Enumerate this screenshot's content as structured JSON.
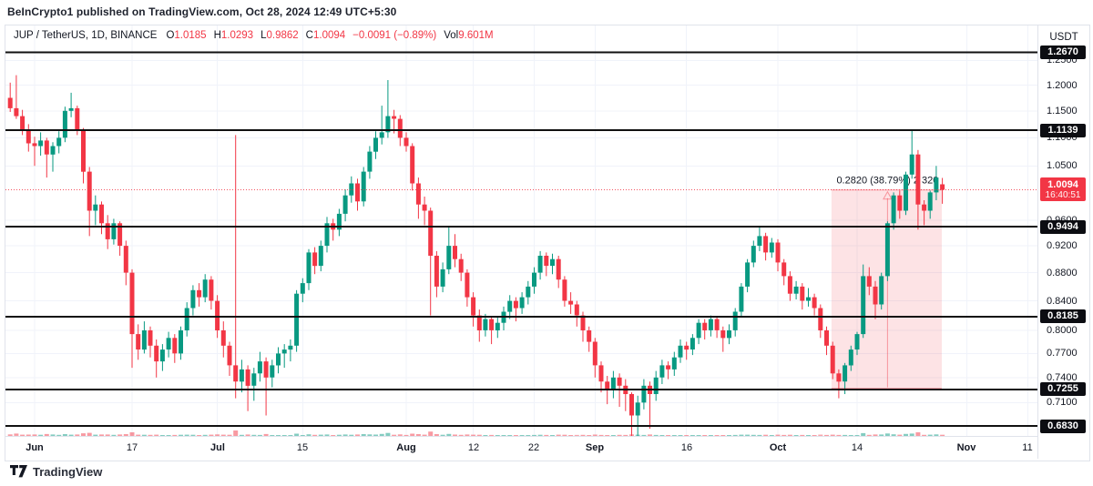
{
  "attribution": "BeInCrypto1 published on TradingView.com, Oct 28, 2024 12:49 UTC+5:30",
  "legend": {
    "symbol": "JUP / TetherUS, 1D, BINANCE",
    "o_label": "O",
    "o": "1.0185",
    "h_label": "H",
    "h": "1.0293",
    "l_label": "L",
    "l": "0.9862",
    "c_label": "C",
    "c": "1.0094",
    "change": "−0.0091 (−0.89%)",
    "vol_label": "Vol",
    "vol": "9.601M"
  },
  "axis": {
    "currency": "USDT"
  },
  "footer": {
    "brand": "TradingView",
    "logo_icon": "tradingview-logo"
  },
  "chart_data": {
    "type": "candlestick",
    "title": "JUP / TetherUS, 1D, BINANCE",
    "timeframe": "1D",
    "scale": "logarithmic",
    "start_date": "2024-05-28",
    "end_date": "2024-10-28",
    "current": {
      "price": 1.0094,
      "label": "1.0094",
      "countdown": "16:40:51"
    },
    "y_axis": {
      "labels": [
        "1.2500",
        "1.2000",
        "1.1500",
        "1.1000",
        "1.0500",
        "0.9600",
        "0.9200",
        "0.8800",
        "0.8400",
        "0.8000",
        "0.7700",
        "0.7400",
        "0.7100"
      ],
      "range_top": 1.324,
      "range_bottom": 0.672
    },
    "levels": [
      {
        "label": "1.2670"
      },
      {
        "label": "1.1139"
      },
      {
        "label": "0.9494"
      },
      {
        "label": "0.8185"
      },
      {
        "label": "0.7255"
      },
      {
        "label": "0.6830"
      }
    ],
    "x_axis": {
      "ticks": [
        {
          "label": "Jun",
          "day": 4,
          "major": true
        },
        {
          "label": "17",
          "day": 20,
          "major": false
        },
        {
          "label": "Jul",
          "day": 34,
          "major": true
        },
        {
          "label": "15",
          "day": 48,
          "major": false
        },
        {
          "label": "Aug",
          "day": 65,
          "major": true
        },
        {
          "label": "12",
          "day": 76,
          "major": false
        },
        {
          "label": "22",
          "day": 86,
          "major": false
        },
        {
          "label": "Sep",
          "day": 96,
          "major": true
        },
        {
          "label": "16",
          "day": 111,
          "major": false
        },
        {
          "label": "Oct",
          "day": 126,
          "major": true
        },
        {
          "label": "14",
          "day": 139,
          "major": false
        },
        {
          "label": "Nov",
          "day": 157,
          "major": true
        },
        {
          "label": "11",
          "day": 167,
          "major": false
        }
      ]
    },
    "measure": {
      "from_day": 134.8,
      "to_day": 152.9,
      "price_from": 0.727,
      "price_to": 1.009,
      "arrow_day": 144,
      "label": "0.2820 (38.79%) 2 320"
    },
    "candles": [
      [
        1.175,
        1.205,
        1.148,
        1.155
      ],
      [
        1.155,
        1.22,
        1.135,
        1.14
      ],
      [
        1.14,
        1.152,
        1.105,
        1.115
      ],
      [
        1.115,
        1.125,
        1.075,
        1.09
      ],
      [
        1.09,
        1.102,
        1.05,
        1.085
      ],
      [
        1.085,
        1.11,
        1.068,
        1.095
      ],
      [
        1.095,
        1.1,
        1.03,
        1.07
      ],
      [
        1.07,
        1.092,
        1.04,
        1.085
      ],
      [
        1.085,
        1.112,
        1.072,
        1.1
      ],
      [
        1.1,
        1.158,
        1.092,
        1.15
      ],
      [
        1.15,
        1.185,
        1.138,
        1.155
      ],
      [
        1.155,
        1.16,
        1.105,
        1.115
      ],
      [
        1.115,
        1.118,
        1.02,
        1.04
      ],
      [
        1.04,
        1.048,
        0.935,
        0.975
      ],
      [
        0.975,
        1.0,
        0.952,
        0.985
      ],
      [
        0.985,
        0.99,
        0.938,
        0.955
      ],
      [
        0.955,
        0.968,
        0.915,
        0.93
      ],
      [
        0.93,
        0.962,
        0.922,
        0.955
      ],
      [
        0.955,
        0.958,
        0.905,
        0.92
      ],
      [
        0.92,
        0.928,
        0.862,
        0.88
      ],
      [
        0.88,
        0.885,
        0.752,
        0.795
      ],
      [
        0.795,
        0.808,
        0.762,
        0.775
      ],
      [
        0.775,
        0.812,
        0.77,
        0.8
      ],
      [
        0.8,
        0.805,
        0.765,
        0.78
      ],
      [
        0.78,
        0.788,
        0.74,
        0.76
      ],
      [
        0.76,
        0.782,
        0.748,
        0.775
      ],
      [
        0.775,
        0.798,
        0.765,
        0.79
      ],
      [
        0.79,
        0.795,
        0.758,
        0.77
      ],
      [
        0.77,
        0.805,
        0.762,
        0.8
      ],
      [
        0.8,
        0.838,
        0.792,
        0.83
      ],
      [
        0.83,
        0.862,
        0.82,
        0.855
      ],
      [
        0.855,
        0.865,
        0.832,
        0.845
      ],
      [
        0.845,
        0.878,
        0.838,
        0.87
      ],
      [
        0.87,
        0.875,
        0.828,
        0.84
      ],
      [
        0.84,
        0.848,
        0.79,
        0.8
      ],
      [
        0.8,
        0.812,
        0.765,
        0.78
      ],
      [
        0.78,
        0.785,
        0.742,
        0.755
      ],
      [
        0.755,
        1.105,
        0.715,
        0.735
      ],
      [
        0.735,
        0.762,
        0.722,
        0.75
      ],
      [
        0.75,
        0.755,
        0.7,
        0.73
      ],
      [
        0.73,
        0.752,
        0.712,
        0.745
      ],
      [
        0.745,
        0.772,
        0.735,
        0.76
      ],
      [
        0.76,
        0.765,
        0.695,
        0.74
      ],
      [
        0.74,
        0.762,
        0.728,
        0.755
      ],
      [
        0.755,
        0.778,
        0.745,
        0.77
      ],
      [
        0.77,
        0.782,
        0.752,
        0.775
      ],
      [
        0.775,
        0.788,
        0.76,
        0.78
      ],
      [
        0.78,
        0.855,
        0.772,
        0.85
      ],
      [
        0.85,
        0.872,
        0.838,
        0.865
      ],
      [
        0.865,
        0.915,
        0.855,
        0.91
      ],
      [
        0.91,
        0.918,
        0.878,
        0.89
      ],
      [
        0.89,
        0.928,
        0.882,
        0.92
      ],
      [
        0.92,
        0.965,
        0.91,
        0.955
      ],
      [
        0.955,
        0.962,
        0.928,
        0.945
      ],
      [
        0.945,
        0.978,
        0.935,
        0.97
      ],
      [
        0.97,
        1.01,
        0.958,
        1.0
      ],
      [
        1.0,
        1.032,
        0.988,
        1.02
      ],
      [
        1.02,
        1.028,
        0.975,
        0.99
      ],
      [
        0.99,
        1.048,
        0.982,
        1.04
      ],
      [
        1.04,
        1.085,
        1.028,
        1.075
      ],
      [
        1.075,
        1.112,
        1.062,
        1.1
      ],
      [
        1.1,
        1.16,
        1.088,
        1.11
      ],
      [
        1.11,
        1.21,
        1.1,
        1.14
      ],
      [
        1.14,
        1.152,
        1.108,
        1.135
      ],
      [
        1.135,
        1.142,
        1.085,
        1.1
      ],
      [
        1.1,
        1.11,
        1.075,
        1.085
      ],
      [
        1.085,
        1.09,
        1.008,
        1.02
      ],
      [
        1.02,
        1.03,
        0.962,
        0.985
      ],
      [
        0.985,
        0.998,
        0.952,
        0.975
      ],
      [
        0.975,
        0.98,
        0.82,
        0.905
      ],
      [
        0.905,
        0.912,
        0.845,
        0.86
      ],
      [
        0.86,
        0.895,
        0.852,
        0.885
      ],
      [
        0.885,
        0.95,
        0.878,
        0.92
      ],
      [
        0.92,
        0.938,
        0.888,
        0.9
      ],
      [
        0.9,
        0.908,
        0.868,
        0.88
      ],
      [
        0.88,
        0.885,
        0.832,
        0.845
      ],
      [
        0.845,
        0.852,
        0.805,
        0.82
      ],
      [
        0.82,
        0.828,
        0.785,
        0.8
      ],
      [
        0.8,
        0.822,
        0.792,
        0.815
      ],
      [
        0.815,
        0.818,
        0.782,
        0.8
      ],
      [
        0.8,
        0.818,
        0.79,
        0.81
      ],
      [
        0.81,
        0.832,
        0.8,
        0.825
      ],
      [
        0.825,
        0.848,
        0.815,
        0.84
      ],
      [
        0.84,
        0.845,
        0.812,
        0.83
      ],
      [
        0.83,
        0.852,
        0.822,
        0.845
      ],
      [
        0.845,
        0.868,
        0.835,
        0.86
      ],
      [
        0.86,
        0.888,
        0.85,
        0.88
      ],
      [
        0.88,
        0.912,
        0.87,
        0.905
      ],
      [
        0.905,
        0.91,
        0.875,
        0.89
      ],
      [
        0.89,
        0.908,
        0.878,
        0.9
      ],
      [
        0.9,
        0.905,
        0.858,
        0.87
      ],
      [
        0.87,
        0.875,
        0.832,
        0.84
      ],
      [
        0.84,
        0.852,
        0.822,
        0.835
      ],
      [
        0.835,
        0.84,
        0.805,
        0.82
      ],
      [
        0.82,
        0.825,
        0.785,
        0.8
      ],
      [
        0.8,
        0.805,
        0.772,
        0.785
      ],
      [
        0.785,
        0.79,
        0.74,
        0.755
      ],
      [
        0.755,
        0.76,
        0.722,
        0.735
      ],
      [
        0.735,
        0.742,
        0.708,
        0.725
      ],
      [
        0.725,
        0.748,
        0.715,
        0.74
      ],
      [
        0.74,
        0.745,
        0.705,
        0.73
      ],
      [
        0.73,
        0.738,
        0.7,
        0.72
      ],
      [
        0.72,
        0.722,
        0.665,
        0.695
      ],
      [
        0.695,
        0.718,
        0.67,
        0.71
      ],
      [
        0.71,
        0.738,
        0.702,
        0.73
      ],
      [
        0.73,
        0.735,
        0.68,
        0.72
      ],
      [
        0.72,
        0.748,
        0.712,
        0.74
      ],
      [
        0.74,
        0.762,
        0.732,
        0.755
      ],
      [
        0.755,
        0.76,
        0.738,
        0.75
      ],
      [
        0.75,
        0.772,
        0.742,
        0.765
      ],
      [
        0.765,
        0.788,
        0.758,
        0.78
      ],
      [
        0.78,
        0.785,
        0.762,
        0.775
      ],
      [
        0.775,
        0.795,
        0.768,
        0.79
      ],
      [
        0.79,
        0.815,
        0.782,
        0.81
      ],
      [
        0.81,
        0.815,
        0.788,
        0.8
      ],
      [
        0.8,
        0.82,
        0.792,
        0.815
      ],
      [
        0.815,
        0.818,
        0.79,
        0.8
      ],
      [
        0.8,
        0.805,
        0.772,
        0.79
      ],
      [
        0.79,
        0.808,
        0.782,
        0.8
      ],
      [
        0.8,
        0.83,
        0.792,
        0.825
      ],
      [
        0.825,
        0.865,
        0.818,
        0.86
      ],
      [
        0.86,
        0.9,
        0.852,
        0.895
      ],
      [
        0.895,
        0.928,
        0.888,
        0.92
      ],
      [
        0.92,
        0.95,
        0.912,
        0.935
      ],
      [
        0.935,
        0.94,
        0.898,
        0.91
      ],
      [
        0.91,
        0.932,
        0.902,
        0.925
      ],
      [
        0.925,
        0.93,
        0.882,
        0.895
      ],
      [
        0.895,
        0.9,
        0.862,
        0.875
      ],
      [
        0.875,
        0.882,
        0.84,
        0.85
      ],
      [
        0.85,
        0.868,
        0.842,
        0.86
      ],
      [
        0.86,
        0.865,
        0.828,
        0.84
      ],
      [
        0.84,
        0.858,
        0.832,
        0.845
      ],
      [
        0.845,
        0.85,
        0.82,
        0.83
      ],
      [
        0.83,
        0.835,
        0.79,
        0.8
      ],
      [
        0.8,
        0.805,
        0.768,
        0.78
      ],
      [
        0.78,
        0.785,
        0.738,
        0.745
      ],
      [
        0.745,
        0.75,
        0.715,
        0.735
      ],
      [
        0.735,
        0.758,
        0.72,
        0.755
      ],
      [
        0.755,
        0.78,
        0.748,
        0.775
      ],
      [
        0.775,
        0.798,
        0.768,
        0.795
      ],
      [
        0.795,
        0.892,
        0.79,
        0.875
      ],
      [
        0.875,
        0.888,
        0.848,
        0.86
      ],
      [
        0.86,
        0.868,
        0.815,
        0.835
      ],
      [
        0.835,
        0.88,
        0.828,
        0.875
      ],
      [
        0.875,
        0.958,
        0.868,
        0.955
      ],
      [
        0.955,
        1.005,
        0.945,
        1.0
      ],
      [
        1.0,
        1.008,
        0.962,
        0.975
      ],
      [
        0.975,
        1.04,
        0.968,
        1.035
      ],
      [
        1.035,
        1.115,
        1.028,
        1.07
      ],
      [
        1.07,
        1.078,
        0.945,
        0.985
      ],
      [
        0.985,
        0.992,
        0.952,
        0.975
      ],
      [
        0.975,
        1.008,
        0.962,
        1.005
      ],
      [
        1.005,
        1.05,
        0.992,
        1.03
      ],
      [
        1.0185,
        1.0293,
        0.9862,
        1.0094
      ]
    ],
    "colors": {
      "up": "#089981",
      "down": "#f23645",
      "grid": "#f0f3fa",
      "level": "#111111",
      "text": "#131722",
      "measure_fill": "rgba(242,54,69,0.14)",
      "measure_line": "rgba(242,54,69,0.45)",
      "badge_bg": "#0c0d12",
      "current_badge_bg": "#f23645"
    }
  }
}
